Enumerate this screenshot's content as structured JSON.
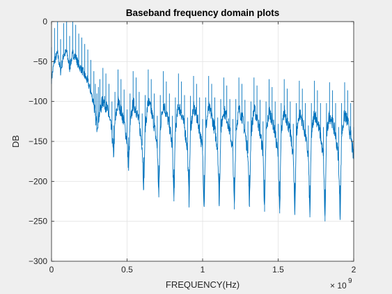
{
  "window": {
    "background": "#efefef"
  },
  "chart_data": {
    "type": "line",
    "title": "Baseband frequency domain plots",
    "xlabel": "FREQUENCY(Hz)",
    "ylabel": "DB",
    "xlim": [
      0,
      2000000000
    ],
    "ylim": [
      -300,
      0
    ],
    "x_exponent_label": "× 10",
    "x_exponent": "9",
    "x_ticks": [
      0,
      500000000,
      1000000000,
      1500000000,
      2000000000
    ],
    "x_tick_labels": [
      "0",
      "0.5",
      "1",
      "1.5",
      "2"
    ],
    "y_ticks": [
      0,
      -50,
      -100,
      -150,
      -200,
      -250,
      -300
    ],
    "y_tick_labels": [
      "0",
      "−50",
      "−100",
      "−150",
      "−200",
      "−250",
      "−300"
    ],
    "grid": true,
    "series_color": "#0072bd",
    "series": [
      {
        "x": [
          0,
          20000000,
          40000000,
          60000000,
          80000000,
          100000000,
          120000000,
          140000000,
          160000000,
          180000000,
          200000000,
          220000000,
          240000000,
          260000000,
          280000000,
          290000000,
          300000000,
          310000000,
          320000000,
          340000000,
          360000000,
          380000000,
          400000000,
          410000000,
          420000000,
          440000000,
          460000000,
          480000000,
          500000000,
          510000000,
          520000000,
          540000000,
          560000000,
          580000000,
          600000000,
          610000000,
          620000000,
          640000000,
          660000000,
          680000000,
          700000000,
          710000000,
          720000000,
          740000000,
          760000000,
          780000000,
          800000000,
          810000000,
          820000000,
          840000000,
          860000000,
          880000000,
          900000000,
          910000000,
          920000000,
          940000000,
          960000000,
          980000000,
          1000000000,
          1010000000,
          1020000000,
          1040000000,
          1060000000,
          1080000000,
          1100000000,
          1110000000,
          1120000000,
          1140000000,
          1160000000,
          1180000000,
          1200000000,
          1210000000,
          1220000000,
          1240000000,
          1260000000,
          1280000000,
          1300000000,
          1310000000,
          1320000000,
          1340000000,
          1360000000,
          1380000000,
          1400000000,
          1410000000,
          1420000000,
          1440000000,
          1460000000,
          1480000000,
          1500000000,
          1510000000,
          1520000000,
          1540000000,
          1560000000,
          1580000000,
          1600000000,
          1610000000,
          1620000000,
          1640000000,
          1660000000,
          1680000000,
          1700000000,
          1710000000,
          1720000000,
          1740000000,
          1760000000,
          1780000000,
          1800000000,
          1810000000,
          1820000000,
          1840000000,
          1860000000,
          1880000000,
          1900000000,
          1910000000,
          1920000000,
          1940000000,
          1960000000,
          1980000000,
          2000000000
        ],
        "y": [
          -72,
          -48,
          -40,
          -62,
          -42,
          -38,
          -58,
          -40,
          -44,
          -55,
          -60,
          -68,
          -75,
          -88,
          -102,
          -118,
          -130,
          -122,
          -112,
          -98,
          -105,
          -118,
          -140,
          -170,
          -128,
          -100,
          -112,
          -125,
          -150,
          -185,
          -130,
          -102,
          -110,
          -128,
          -155,
          -210,
          -132,
          -100,
          -112,
          -130,
          -158,
          -220,
          -132,
          -102,
          -115,
          -130,
          -158,
          -225,
          -135,
          -105,
          -115,
          -132,
          -160,
          -225,
          -133,
          -108,
          -118,
          -135,
          -162,
          -232,
          -135,
          -108,
          -118,
          -135,
          -160,
          -230,
          -137,
          -110,
          -120,
          -137,
          -162,
          -235,
          -137,
          -110,
          -118,
          -138,
          -165,
          -232,
          -140,
          -110,
          -120,
          -138,
          -165,
          -238,
          -140,
          -112,
          -122,
          -140,
          -168,
          -240,
          -142,
          -112,
          -124,
          -140,
          -168,
          -242,
          -142,
          -114,
          -124,
          -142,
          -170,
          -245,
          -142,
          -114,
          -126,
          -142,
          -172,
          -250,
          -142,
          -116,
          -126,
          -142,
          -172,
          -245,
          -142,
          -116,
          -126,
          -142,
          -172
        ]
      }
    ]
  }
}
